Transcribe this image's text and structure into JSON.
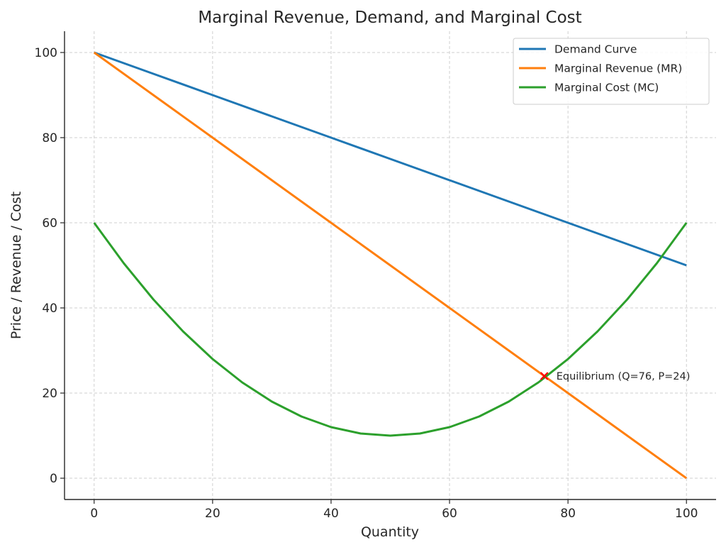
{
  "chart_data": {
    "type": "line",
    "title": "Marginal Revenue, Demand, and Marginal Cost",
    "xlabel": "Quantity",
    "ylabel": "Price / Revenue / Cost",
    "xlim": [
      -5,
      105
    ],
    "ylim": [
      -5,
      105
    ],
    "xticks": [
      0,
      20,
      40,
      60,
      80,
      100
    ],
    "yticks": [
      0,
      20,
      40,
      60,
      80,
      100
    ],
    "grid": true,
    "legend_position": "top-right",
    "series": [
      {
        "name": "Demand Curve",
        "color": "#1f77b4",
        "x": [
          0,
          10,
          20,
          30,
          40,
          50,
          60,
          70,
          80,
          90,
          100
        ],
        "y": [
          100,
          95,
          90,
          85,
          80,
          75,
          70,
          65,
          60,
          55,
          50
        ]
      },
      {
        "name": "Marginal Revenue (MR)",
        "color": "#ff7f0e",
        "x": [
          0,
          10,
          20,
          30,
          40,
          50,
          60,
          70,
          80,
          90,
          100
        ],
        "y": [
          100,
          90,
          80,
          70,
          60,
          50,
          40,
          30,
          20,
          10,
          0
        ]
      },
      {
        "name": "Marginal Cost (MC)",
        "color": "#2ca02c",
        "x": [
          0,
          5,
          10,
          15,
          20,
          25,
          30,
          35,
          40,
          45,
          50,
          55,
          60,
          65,
          70,
          75,
          80,
          85,
          90,
          95,
          100
        ],
        "y": [
          60,
          50.5,
          42,
          34.5,
          28,
          22.5,
          18,
          14.5,
          12,
          10.5,
          10,
          10.5,
          12,
          14.5,
          18,
          22.5,
          28,
          34.5,
          42,
          50.5,
          60
        ]
      }
    ],
    "annotations": [
      {
        "label": "Equilibrium (Q=76, P=24)",
        "x": 76,
        "y": 24,
        "marker": "x",
        "color": "#ff0000"
      }
    ]
  }
}
